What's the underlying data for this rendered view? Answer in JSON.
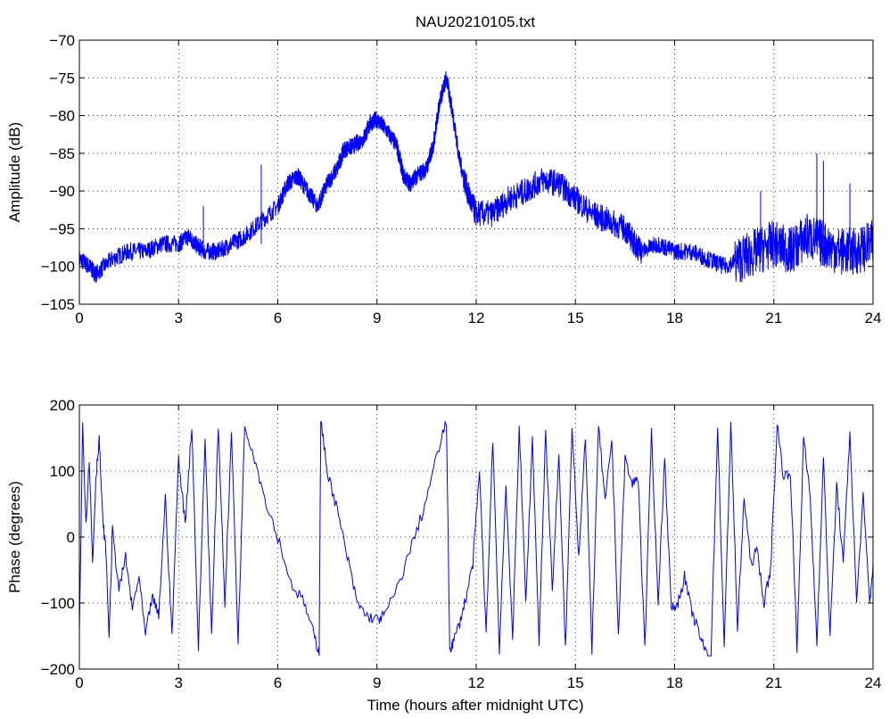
{
  "chart_data": [
    {
      "type": "line",
      "title": "NAU20210105.txt",
      "xlabel": "",
      "ylabel": "Amplitude (dB)",
      "xlim": [
        0,
        24
      ],
      "ylim": [
        -105,
        -70
      ],
      "xticks": [
        "0",
        "3",
        "6",
        "9",
        "12",
        "15",
        "18",
        "21",
        "24"
      ],
      "yticks": [
        "−70",
        "−75",
        "−80",
        "−85",
        "−90",
        "−95",
        "−100",
        "−105"
      ],
      "grid": true,
      "series": [
        {
          "color": "#0000ff",
          "noise": 1.2,
          "x": [
            0,
            0.3,
            0.5,
            1.0,
            1.5,
            2.0,
            2.5,
            3.0,
            3.3,
            3.5,
            3.8,
            4.2,
            4.6,
            5.0,
            5.5,
            6.0,
            6.3,
            6.6,
            6.9,
            7.2,
            7.5,
            7.8,
            8.0,
            8.3,
            8.6,
            8.8,
            9.0,
            9.3,
            9.6,
            9.8,
            10.0,
            10.2,
            10.5,
            10.7,
            10.9,
            11.1,
            11.3,
            11.5,
            11.8,
            12.0,
            12.5,
            13.0,
            13.5,
            14.0,
            14.5,
            15.0,
            15.5,
            16.0,
            16.5,
            16.8,
            17.0,
            17.5,
            18.0,
            18.5,
            19.0,
            19.5,
            20.0,
            20.5,
            21.0,
            21.5,
            22.0,
            22.5,
            23.0,
            23.5,
            24.0
          ],
          "y": [
            -99,
            -100,
            -101,
            -99,
            -98,
            -98,
            -97,
            -97,
            -96,
            -97,
            -98,
            -98,
            -97,
            -96,
            -94,
            -92,
            -89,
            -88,
            -90,
            -92,
            -89,
            -87,
            -84.5,
            -84,
            -83,
            -81,
            -80.5,
            -82,
            -84,
            -88,
            -89,
            -88,
            -87,
            -84,
            -78,
            -75,
            -80,
            -86,
            -91,
            -93,
            -93,
            -91,
            -90,
            -88.5,
            -89,
            -91,
            -93,
            -94,
            -95,
            -97,
            -98,
            -97,
            -98,
            -98,
            -99,
            -100,
            -99,
            -98,
            -97,
            -98,
            -96,
            -97,
            -98,
            -98,
            -97
          ]
        }
      ],
      "spikes": [
        {
          "x": 5.5,
          "y": -86.5
        },
        {
          "x": 3.75,
          "y": -92
        },
        {
          "x": 20.6,
          "y": -90
        },
        {
          "x": 22.3,
          "y": -85
        },
        {
          "x": 22.5,
          "y": -86
        },
        {
          "x": 23.3,
          "y": -89
        }
      ]
    },
    {
      "type": "line",
      "title": "",
      "xlabel": "Time (hours after midnight UTC)",
      "ylabel": "Phase (degrees)",
      "xlim": [
        0,
        24
      ],
      "ylim": [
        -200,
        200
      ],
      "xticks": [
        "0",
        "3",
        "6",
        "9",
        "12",
        "15",
        "18",
        "21",
        "24"
      ],
      "yticks": [
        "200",
        "100",
        "0",
        "−100",
        "−200"
      ],
      "grid": true,
      "series": [
        {
          "color": "#0000ff",
          "x": [
            0,
            0.1,
            0.2,
            0.3,
            0.4,
            0.5,
            0.6,
            0.7,
            0.8,
            0.9,
            1.0,
            1.2,
            1.4,
            1.6,
            1.8,
            2.0,
            2.2,
            2.4,
            2.6,
            2.8,
            3.0,
            3.2,
            3.4,
            3.6,
            3.8,
            4.0,
            4.2,
            4.4,
            4.6,
            4.8,
            5.0,
            5.3,
            5.6,
            6.0,
            6.4,
            6.8,
            7.1,
            7.25,
            7.3,
            7.5,
            7.8,
            8.1,
            8.4,
            8.7,
            9.0,
            9.2,
            9.6,
            10.0,
            10.4,
            10.8,
            11.1,
            11.2,
            11.3,
            11.5,
            11.7,
            11.9,
            12.1,
            12.3,
            12.5,
            12.7,
            12.9,
            13.1,
            13.3,
            13.5,
            13.7,
            13.9,
            14.1,
            14.3,
            14.5,
            14.7,
            14.9,
            15.1,
            15.3,
            15.5,
            15.7,
            15.9,
            16.1,
            16.3,
            16.5,
            16.7,
            16.9,
            17.1,
            17.3,
            17.5,
            17.7,
            17.9,
            18.1,
            18.3,
            18.5,
            18.7,
            18.9,
            19.1,
            19.3,
            19.5,
            19.7,
            19.9,
            20.1,
            20.3,
            20.5,
            20.7,
            20.9,
            21.1,
            21.3,
            21.5,
            21.7,
            21.9,
            22.1,
            22.3,
            22.5,
            22.7,
            22.9,
            23.1,
            23.3,
            23.5,
            23.7,
            23.9,
            24.0
          ],
          "y": [
            -150,
            170,
            20,
            120,
            -40,
            90,
            150,
            30,
            -20,
            -150,
            10,
            -80,
            -30,
            -110,
            -60,
            -150,
            -90,
            -120,
            60,
            -150,
            120,
            20,
            170,
            -170,
            150,
            -150,
            170,
            -100,
            160,
            -160,
            170,
            120,
            60,
            0,
            -70,
            -100,
            -150,
            -175,
            175,
            100,
            40,
            -30,
            -100,
            -120,
            -125,
            -120,
            -80,
            -20,
            40,
            120,
            175,
            -170,
            -160,
            -130,
            -90,
            -40,
            100,
            -150,
            150,
            -170,
            80,
            -160,
            170,
            -100,
            150,
            -160,
            160,
            -80,
            120,
            -170,
            170,
            -30,
            150,
            -170,
            170,
            50,
            150,
            -150,
            120,
            80,
            90,
            -170,
            160,
            -100,
            120,
            -110,
            -100,
            -60,
            -110,
            -140,
            -170,
            -180,
            170,
            -170,
            175,
            -140,
            60,
            -40,
            -20,
            -100,
            -50,
            170,
            90,
            100,
            -170,
            150,
            60,
            -160,
            120,
            -150,
            80,
            -40,
            160,
            -100,
            60,
            -100,
            -40
          ]
        }
      ]
    }
  ]
}
